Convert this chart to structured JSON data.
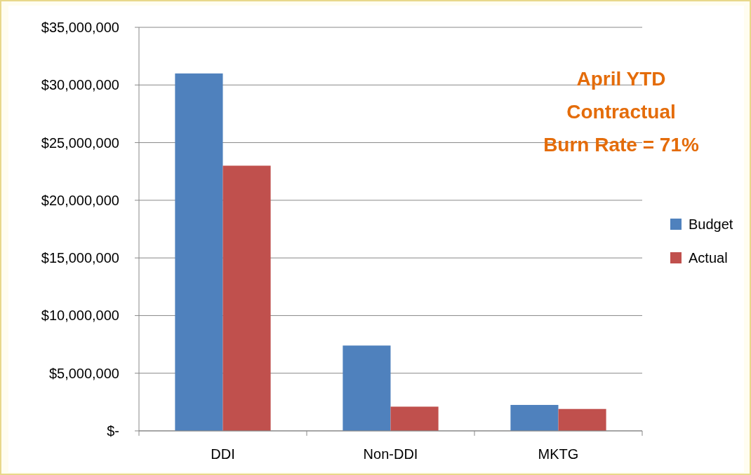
{
  "chart_data": {
    "type": "bar",
    "categories": [
      "DDI",
      "Non-DDI",
      "MKTG"
    ],
    "series": [
      {
        "name": "Budget",
        "color": "#4f81bd",
        "values": [
          31000000,
          7400000,
          2250000
        ]
      },
      {
        "name": "Actual",
        "color": "#c0504d",
        "values": [
          23000000,
          2100000,
          1900000
        ]
      }
    ],
    "ylim": [
      0,
      35000000
    ],
    "yticks": [
      {
        "value": 0,
        "label": "$-"
      },
      {
        "value": 5000000,
        "label": "$5,000,000"
      },
      {
        "value": 10000000,
        "label": "$10,000,000"
      },
      {
        "value": 15000000,
        "label": "$15,000,000"
      },
      {
        "value": 20000000,
        "label": "$20,000,000"
      },
      {
        "value": 25000000,
        "label": "$25,000,000"
      },
      {
        "value": 30000000,
        "label": "$30,000,000"
      },
      {
        "value": 35000000,
        "label": "$35,000,000"
      }
    ],
    "grid": "y",
    "legend": "right",
    "annotations": [
      "April YTD\nContractual\nBurn Rate = 71%"
    ]
  }
}
